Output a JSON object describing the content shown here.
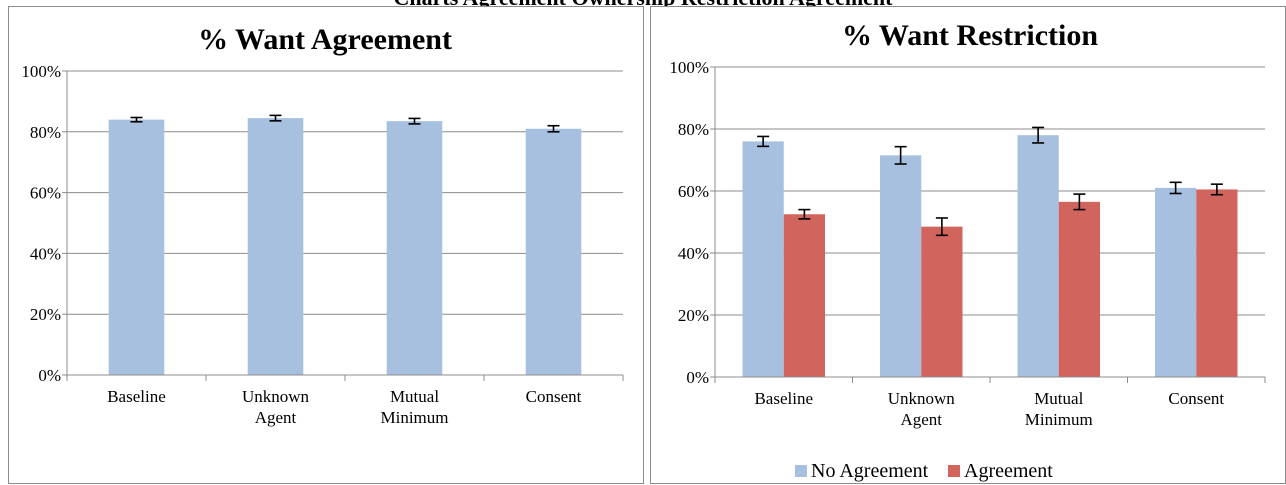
{
  "header_fragment": "Charts Agreement Ownership Restriction Agreement",
  "colors": {
    "no_agreement": "#a7c0df",
    "agreement": "#d1655d",
    "gridline": "#8c8c8c",
    "axis": "#8c8c8c"
  },
  "chart_data": [
    {
      "type": "bar",
      "title": "% Want Agreement",
      "categories": [
        [
          "Baseline"
        ],
        [
          "Unknown",
          "Agent"
        ],
        [
          "Mutual",
          "Minimum"
        ],
        [
          "Consent"
        ]
      ],
      "series": [
        {
          "values": [
            84,
            84.5,
            83.5,
            81
          ],
          "errors": [
            0.7,
            0.9,
            0.9,
            1.0
          ],
          "color": "#a7c0df"
        }
      ],
      "ylim": [
        0,
        100
      ],
      "yticks": [
        "0%",
        "20%",
        "40%",
        "60%",
        "80%",
        "100%"
      ],
      "grid": true,
      "legend": "none"
    },
    {
      "type": "bar",
      "title": "% Want Restriction",
      "categories": [
        [
          "Baseline"
        ],
        [
          "Unknown",
          "Agent"
        ],
        [
          "Mutual",
          "Minimum"
        ],
        [
          "Consent"
        ]
      ],
      "series": [
        {
          "name": "No Agreement",
          "values": [
            76,
            71.5,
            78,
            61
          ],
          "errors": [
            1.6,
            2.8,
            2.5,
            1.8
          ],
          "color": "#a7c0df"
        },
        {
          "name": "Agreement",
          "values": [
            52.5,
            48.5,
            56.5,
            60.5
          ],
          "errors": [
            1.5,
            2.8,
            2.5,
            1.7
          ],
          "color": "#d1655d"
        }
      ],
      "ylim": [
        0,
        100
      ],
      "yticks": [
        "0%",
        "20%",
        "40%",
        "60%",
        "80%",
        "100%"
      ],
      "grid": true,
      "legend": "bottom"
    }
  ]
}
